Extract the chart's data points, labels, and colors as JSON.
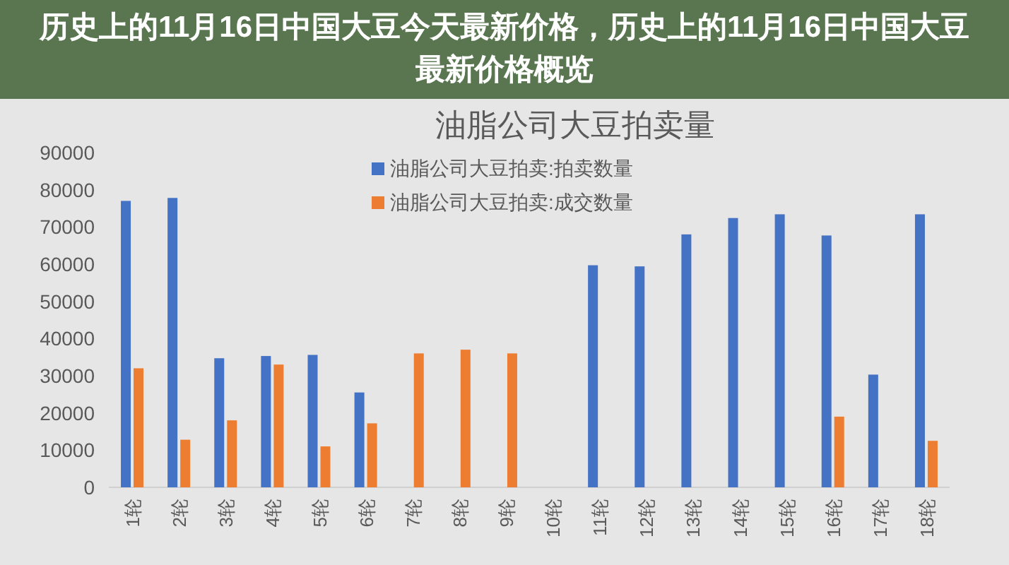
{
  "chart_data": {
    "type": "bar",
    "title": "油脂公司大豆拍卖量",
    "categories": [
      "1轮",
      "2轮",
      "3轮",
      "4轮",
      "5轮",
      "6轮",
      "7轮",
      "8轮",
      "9轮",
      "10轮",
      "11轮",
      "12轮",
      "13轮",
      "14轮",
      "15轮",
      "16轮",
      "17轮",
      "18轮"
    ],
    "series": [
      {
        "name": "油脂公司大豆拍卖:拍卖数量",
        "color": "#4472c4",
        "values": [
          77000,
          77800,
          34700,
          35300,
          35600,
          25500,
          null,
          null,
          null,
          null,
          59700,
          59400,
          68000,
          72400,
          73400,
          67700,
          30300,
          73400
        ]
      },
      {
        "name": "油脂公司大豆拍卖:成交数量",
        "color": "#ed7d31",
        "values": [
          32000,
          12800,
          18000,
          33000,
          11000,
          17200,
          36000,
          37000,
          36000,
          null,
          null,
          null,
          null,
          null,
          null,
          19000,
          null,
          12500
        ]
      }
    ],
    "ylim": [
      0,
      90000
    ],
    "yticks": [
      0,
      10000,
      20000,
      30000,
      40000,
      50000,
      60000,
      70000,
      80000,
      90000
    ],
    "grid": false,
    "legend": "top",
    "annotations": [
      "历史上的11月16日中国大豆今天最新价格，历史上的11月16日中国大豆最新价格概览"
    ]
  }
}
